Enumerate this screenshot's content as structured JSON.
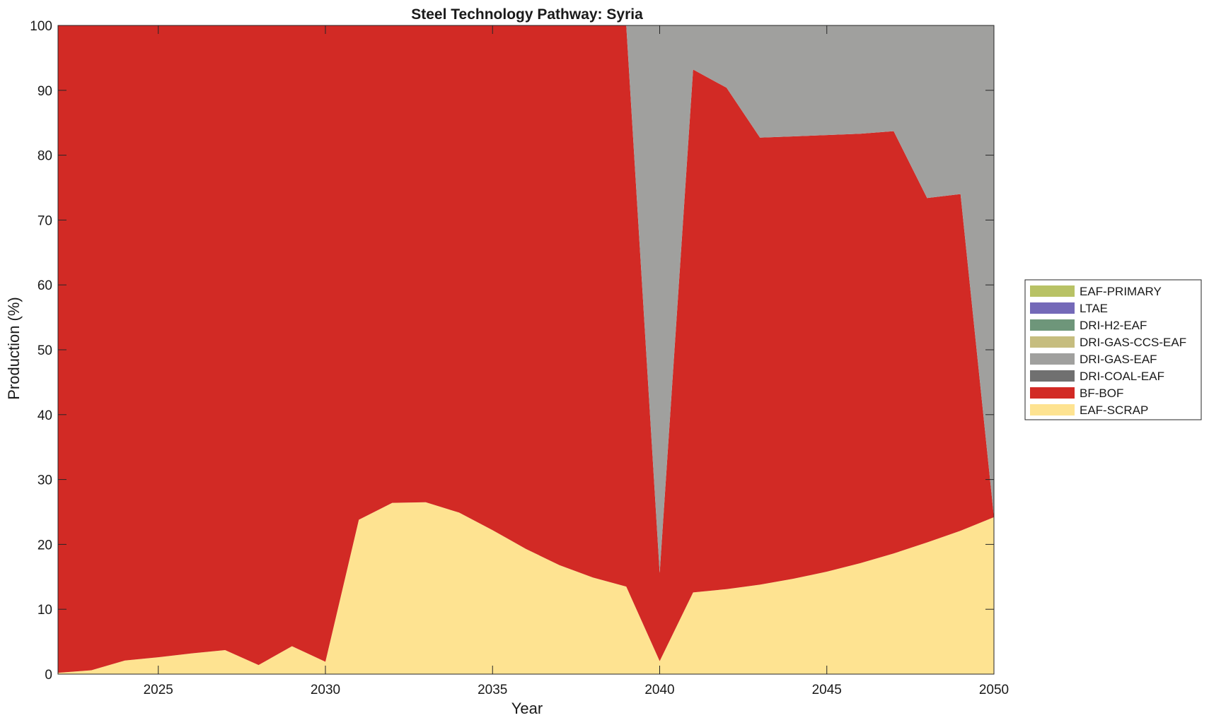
{
  "chart_data": {
    "type": "area",
    "stacked": true,
    "title": "Steel Technology Pathway: Syria",
    "xlabel": "Year",
    "ylabel": "Production (%)",
    "xlim": [
      2022,
      2050
    ],
    "ylim": [
      0,
      100
    ],
    "xticks": [
      2025,
      2030,
      2035,
      2040,
      2045,
      2050
    ],
    "yticks": [
      0,
      10,
      20,
      30,
      40,
      50,
      60,
      70,
      80,
      90,
      100
    ],
    "legend_position": "right",
    "x": [
      2022,
      2023,
      2024,
      2025,
      2026,
      2027,
      2028,
      2029,
      2030,
      2031,
      2032,
      2033,
      2034,
      2035,
      2036,
      2037,
      2038,
      2039,
      2040,
      2041,
      2042,
      2043,
      2044,
      2045,
      2046,
      2047,
      2048,
      2049,
      2050
    ],
    "series": [
      {
        "name": "EAF-SCRAP",
        "color": "#fee391",
        "values": [
          0.2,
          0.6,
          2.1,
          2.6,
          3.2,
          3.7,
          1.4,
          4.3,
          1.9,
          23.8,
          26.4,
          26.5,
          24.9,
          22.2,
          19.3,
          16.8,
          14.9,
          13.5,
          2.0,
          12.6,
          13.1,
          13.8,
          14.7,
          15.8,
          17.1,
          18.6,
          20.3,
          22.1,
          24.2
        ]
      },
      {
        "name": "BF-BOF",
        "color": "#d22a25",
        "values": [
          99.8,
          99.4,
          97.9,
          97.4,
          96.8,
          96.3,
          98.6,
          95.7,
          98.1,
          76.2,
          73.6,
          73.5,
          75.1,
          77.8,
          80.7,
          83.2,
          85.1,
          86.5,
          13.6,
          80.6,
          77.3,
          68.9,
          68.2,
          67.3,
          66.2,
          65.1,
          53.1,
          51.9,
          0.0
        ]
      },
      {
        "name": "DRI-COAL-EAF",
        "color": "#707070",
        "values": [
          0,
          0,
          0,
          0,
          0,
          0,
          0,
          0,
          0,
          0,
          0,
          0,
          0,
          0,
          0,
          0,
          0,
          0,
          0,
          0,
          0,
          0,
          0,
          0,
          0,
          0,
          0,
          0,
          0
        ]
      },
      {
        "name": "DRI-GAS-EAF",
        "color": "#a0a09e",
        "values": [
          0,
          0,
          0,
          0,
          0,
          0,
          0,
          0,
          0,
          0,
          0,
          0,
          0,
          0,
          0,
          0,
          0,
          0,
          84.4,
          6.8,
          9.6,
          17.3,
          17.1,
          16.9,
          16.7,
          16.3,
          26.6,
          26.0,
          75.8
        ]
      },
      {
        "name": "DRI-GAS-CCS-EAF",
        "color": "#c6bd7f",
        "values": [
          0,
          0,
          0,
          0,
          0,
          0,
          0,
          0,
          0,
          0,
          0,
          0,
          0,
          0,
          0,
          0,
          0,
          0,
          0,
          0,
          0,
          0,
          0,
          0,
          0,
          0,
          0,
          0,
          0
        ]
      },
      {
        "name": "DRI-H2-EAF",
        "color": "#6e967a",
        "values": [
          0,
          0,
          0,
          0,
          0,
          0,
          0,
          0,
          0,
          0,
          0,
          0,
          0,
          0,
          0,
          0,
          0,
          0,
          0,
          0,
          0,
          0,
          0,
          0,
          0,
          0,
          0,
          0,
          0
        ]
      },
      {
        "name": "LTAE",
        "color": "#7469b8",
        "values": [
          0,
          0,
          0,
          0,
          0,
          0,
          0,
          0,
          0,
          0,
          0,
          0,
          0,
          0,
          0,
          0,
          0,
          0,
          0,
          0,
          0,
          0,
          0,
          0,
          0,
          0,
          0,
          0,
          0
        ]
      },
      {
        "name": "EAF-PRIMARY",
        "color": "#b8c265",
        "values": [
          0,
          0,
          0,
          0,
          0,
          0,
          0,
          0,
          0,
          0,
          0,
          0,
          0,
          0,
          0,
          0,
          0,
          0,
          0,
          0,
          0,
          0,
          0,
          0,
          0,
          0,
          0,
          0,
          0
        ]
      }
    ]
  }
}
